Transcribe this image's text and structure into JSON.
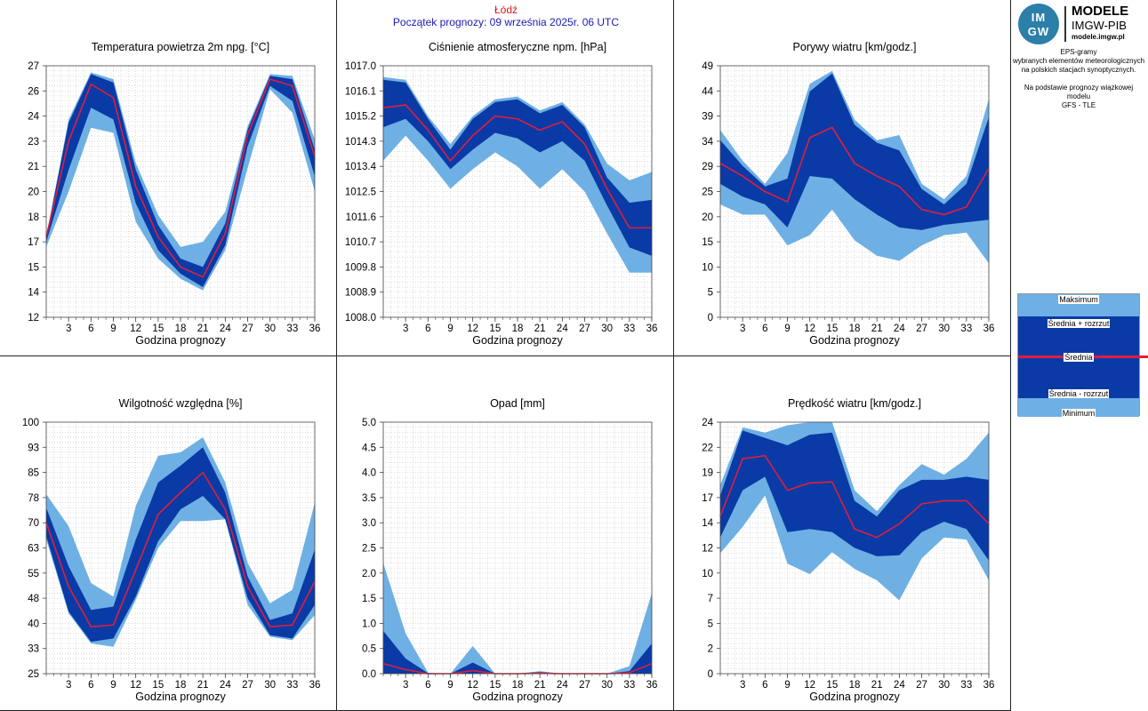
{
  "header": {
    "city": "Łódź",
    "init_line": "Początek prognozy: 09 września 2025r. 06 UTC"
  },
  "logo": {
    "mark_top": "IM",
    "mark_bottom": "GW",
    "line1": "MODELE",
    "line2": "IMGW-PIB",
    "line3": "modele.imgw.pl"
  },
  "info": {
    "line1": "EPS-gramy",
    "line2": "wybranych elementów meteorologicznych",
    "line3": "na polskich stacjach  synoptycznych.",
    "line4": "Na podstawie prognozy wiązkowej modelu",
    "line5": "GFS - TLE"
  },
  "legend": {
    "max": "Maksimum",
    "mean_plus": "Średnia + rozrzut",
    "mean": "Średnia",
    "mean_minus": "Średnia - rozrzut",
    "min": "Minimum"
  },
  "colors": {
    "outer_band": "#6eb0e4",
    "inner_band": "#0a3aa6",
    "mean_line": "#e01e3c",
    "grid": "#c8c8c8"
  },
  "chart_data": [
    {
      "type": "area",
      "title": "Temperatura powietrza 2m npg. [°C]",
      "xlabel": "Godzina prognozy",
      "x": [
        0,
        3,
        6,
        9,
        12,
        15,
        18,
        21,
        24,
        27,
        30,
        33,
        36
      ],
      "xticks": [
        3,
        6,
        9,
        12,
        15,
        18,
        21,
        24,
        27,
        30,
        33,
        36
      ],
      "ylim": [
        12,
        27
      ],
      "yticks": [
        "12",
        "14",
        "15",
        "17",
        "18",
        "20",
        "21",
        "23",
        "24",
        "26",
        "27"
      ],
      "ytick_values": [
        12,
        13.5,
        15,
        16.5,
        18,
        19.5,
        21,
        22.5,
        24,
        25.5,
        27
      ],
      "max": [
        16.8,
        23.8,
        26.6,
        26.2,
        21.2,
        18.1,
        16.2,
        16.5,
        18.3,
        23.4,
        26.5,
        26.4,
        22.6
      ],
      "plus": [
        16.8,
        23.6,
        26.5,
        26.0,
        20.8,
        17.5,
        15.5,
        15.0,
        17.6,
        23.2,
        26.4,
        26.2,
        22.0
      ],
      "mean": [
        16.8,
        22.5,
        25.9,
        25.1,
        19.8,
        16.8,
        15.0,
        14.4,
        17.0,
        22.9,
        26.2,
        25.8,
        21.6
      ],
      "minus": [
        16.5,
        20.8,
        24.5,
        23.8,
        18.8,
        16.0,
        14.6,
        13.8,
        16.3,
        22.2,
        25.8,
        24.9,
        20.4
      ],
      "min": [
        16.2,
        19.5,
        23.3,
        23.0,
        17.7,
        15.5,
        14.3,
        13.6,
        16.0,
        20.9,
        25.6,
        24.2,
        19.5
      ]
    },
    {
      "type": "area",
      "title": "Ciśnienie atmosferyczne npm. [hPa]",
      "xlabel": "Godzina prognozy",
      "x": [
        0,
        3,
        6,
        9,
        12,
        15,
        18,
        21,
        24,
        27,
        30,
        33,
        36
      ],
      "xticks": [
        3,
        6,
        9,
        12,
        15,
        18,
        21,
        24,
        27,
        30,
        33,
        36
      ],
      "ylim": [
        1008.0,
        1017.0
      ],
      "yticks": [
        "1008.0",
        "1008.9",
        "1009.8",
        "1010.7",
        "1011.6",
        "1012.5",
        "1013.4",
        "1014.3",
        "1015.2",
        "1016.1",
        "1017.0"
      ],
      "ytick_values": [
        1008.0,
        1008.9,
        1009.8,
        1010.7,
        1011.6,
        1012.5,
        1013.4,
        1014.3,
        1015.2,
        1016.1,
        1017.0
      ],
      "max": [
        1016.6,
        1016.5,
        1015.2,
        1014.2,
        1015.2,
        1015.8,
        1015.9,
        1015.4,
        1015.7,
        1014.9,
        1013.5,
        1012.9,
        1013.2
      ],
      "plus": [
        1016.5,
        1016.4,
        1015.1,
        1014.0,
        1015.1,
        1015.7,
        1015.8,
        1015.3,
        1015.6,
        1014.8,
        1013.0,
        1012.1,
        1012.2
      ],
      "mean": [
        1015.5,
        1015.6,
        1014.7,
        1013.6,
        1014.5,
        1015.2,
        1015.1,
        1014.7,
        1015.0,
        1014.2,
        1012.6,
        1011.2,
        1011.2
      ],
      "minus": [
        1014.8,
        1015.1,
        1014.3,
        1013.3,
        1014.0,
        1014.6,
        1014.4,
        1013.9,
        1014.3,
        1013.6,
        1012.0,
        1010.5,
        1010.2
      ],
      "min": [
        1013.6,
        1014.5,
        1013.6,
        1012.6,
        1013.3,
        1013.9,
        1013.4,
        1012.6,
        1013.3,
        1012.5,
        1011.0,
        1009.6,
        1009.6
      ]
    },
    {
      "type": "area",
      "title": "Porywy wiatru [km/godz.]",
      "xlabel": "Godzina prognozy",
      "x": [
        0,
        3,
        6,
        9,
        12,
        15,
        18,
        21,
        24,
        27,
        30,
        33,
        36
      ],
      "xticks": [
        3,
        6,
        9,
        12,
        15,
        18,
        21,
        24,
        27,
        30,
        33,
        36
      ],
      "ylim": [
        0,
        49
      ],
      "yticks": [
        "0",
        "5",
        "10",
        "15",
        "20",
        "25",
        "29",
        "34",
        "39",
        "44",
        "49"
      ],
      "ytick_values": [
        0,
        4.9,
        9.8,
        14.7,
        19.6,
        24.5,
        29.4,
        34.3,
        39.2,
        44.1,
        49.0
      ],
      "max": [
        36.5,
        30.5,
        26.0,
        32.0,
        45.5,
        48.0,
        38.5,
        34.5,
        35.5,
        26.0,
        23.0,
        27.5,
        42.5
      ],
      "plus": [
        34.5,
        29.5,
        25.5,
        27.0,
        44.0,
        47.5,
        37.5,
        34.0,
        32.5,
        25.0,
        22.0,
        26.0,
        39.0
      ],
      "mean": [
        30.0,
        27.5,
        24.5,
        22.5,
        35.0,
        37.0,
        30.0,
        27.5,
        25.5,
        21.0,
        20.0,
        21.5,
        29.0
      ],
      "minus": [
        26.0,
        23.5,
        22.0,
        17.5,
        27.5,
        27.0,
        23.0,
        20.0,
        17.5,
        17.0,
        18.0,
        18.5,
        19.0
      ],
      "min": [
        22.0,
        20.0,
        20.0,
        14.0,
        16.0,
        21.0,
        15.0,
        12.0,
        11.0,
        14.0,
        16.0,
        16.5,
        10.5
      ]
    },
    {
      "type": "area",
      "title": "Wilgotność względna [%]",
      "xlabel": "Godzina prognozy",
      "x": [
        0,
        3,
        6,
        9,
        12,
        15,
        18,
        21,
        24,
        27,
        30,
        33,
        36
      ],
      "xticks": [
        3,
        6,
        9,
        12,
        15,
        18,
        21,
        24,
        27,
        30,
        33,
        36
      ],
      "ylim": [
        25,
        100
      ],
      "yticks": [
        "25",
        "33",
        "40",
        "48",
        "55",
        "63",
        "70",
        "78",
        "85",
        "93",
        "100"
      ],
      "ytick_values": [
        25,
        32.5,
        40,
        47.5,
        55,
        62.5,
        70,
        77.5,
        85,
        92.5,
        100
      ],
      "max": [
        78.5,
        69.0,
        52.0,
        48.0,
        75.0,
        90.0,
        91.0,
        95.5,
        82.0,
        58.0,
        46.0,
        50.0,
        76.0
      ],
      "plus": [
        74.5,
        57.0,
        44.0,
        45.0,
        65.0,
        82.0,
        87.0,
        92.5,
        79.0,
        54.0,
        41.0,
        43.0,
        62.0
      ],
      "mean": [
        70.0,
        51.0,
        39.0,
        39.5,
        56.0,
        72.5,
        79.0,
        85.0,
        74.0,
        51.0,
        39.0,
        39.5,
        52.5
      ],
      "minus": [
        66.0,
        43.5,
        34.5,
        35.5,
        48.0,
        64.5,
        74.0,
        78.0,
        71.0,
        47.5,
        36.5,
        35.5,
        45.5
      ],
      "min": [
        65.0,
        43.0,
        34.0,
        33.0,
        47.0,
        62.5,
        70.5,
        70.5,
        71.0,
        45.5,
        36.0,
        35.0,
        42.5
      ]
    },
    {
      "type": "area",
      "title": "Opad [mm]",
      "xlabel": "Godzina prognozy",
      "x": [
        0,
        3,
        6,
        9,
        12,
        15,
        18,
        21,
        24,
        27,
        30,
        33,
        36
      ],
      "xticks": [
        3,
        6,
        9,
        12,
        15,
        18,
        21,
        24,
        27,
        30,
        33,
        36
      ],
      "ylim": [
        0,
        5
      ],
      "yticks": [
        "0.0",
        "0.5",
        "1.0",
        "1.5",
        "2.0",
        "2.5",
        "3.0",
        "3.5",
        "4.0",
        "4.5",
        "5.0"
      ],
      "ytick_values": [
        0,
        0.5,
        1.0,
        1.5,
        2.0,
        2.5,
        3.0,
        3.5,
        4.0,
        4.5,
        5.0
      ],
      "max": [
        2.2,
        0.8,
        0.02,
        0.0,
        0.55,
        0.0,
        0.0,
        0.05,
        0.0,
        0.0,
        0.0,
        0.15,
        1.6
      ],
      "plus": [
        0.85,
        0.3,
        0.01,
        0.0,
        0.22,
        0.0,
        0.0,
        0.03,
        0.0,
        0.0,
        0.0,
        0.05,
        0.6
      ],
      "mean": [
        0.2,
        0.08,
        0.0,
        0.0,
        0.06,
        0.0,
        0.0,
        0.01,
        0.0,
        0.0,
        0.0,
        0.02,
        0.2
      ],
      "minus": [
        0.0,
        0.0,
        0.0,
        0.0,
        0.0,
        0.0,
        0.0,
        0.0,
        0.0,
        0.0,
        0.0,
        0.0,
        0.0
      ],
      "min": [
        0.0,
        0.0,
        0.0,
        0.0,
        0.0,
        0.0,
        0.0,
        0.0,
        0.0,
        0.0,
        0.0,
        0.0,
        0.0
      ]
    },
    {
      "type": "area",
      "title": "Prędkość wiatru [km/godz.]",
      "xlabel": "Godzina prognozy",
      "x": [
        0,
        3,
        6,
        9,
        12,
        15,
        18,
        21,
        24,
        27,
        30,
        33,
        36
      ],
      "xticks": [
        3,
        6,
        9,
        12,
        15,
        18,
        21,
        24,
        27,
        30,
        33,
        36
      ],
      "ylim": [
        0,
        24
      ],
      "yticks": [
        "0",
        "2",
        "5",
        "7",
        "10",
        "12",
        "14",
        "17",
        "19",
        "22",
        "24"
      ],
      "ytick_values": [
        0,
        2.4,
        4.8,
        7.2,
        9.6,
        12.0,
        14.4,
        16.8,
        19.2,
        21.6,
        24.0
      ],
      "max": [
        18.0,
        23.5,
        23.0,
        23.7,
        24.0,
        24.0,
        17.5,
        15.5,
        18.0,
        20.0,
        19.0,
        20.5,
        23.0
      ],
      "plus": [
        17.0,
        23.2,
        22.5,
        21.8,
        22.8,
        23.0,
        16.5,
        15.0,
        17.5,
        18.5,
        18.5,
        18.8,
        18.5
      ],
      "mean": [
        15.0,
        20.5,
        20.8,
        17.5,
        18.2,
        18.3,
        13.8,
        13.0,
        14.3,
        16.2,
        16.5,
        16.5,
        14.3
      ],
      "minus": [
        13.0,
        17.5,
        18.8,
        13.5,
        13.8,
        13.5,
        12.0,
        11.2,
        11.3,
        13.5,
        14.5,
        13.8,
        10.8
      ],
      "min": [
        11.5,
        14.0,
        17.0,
        10.5,
        9.5,
        11.6,
        10.0,
        8.9,
        7.0,
        11.0,
        13.0,
        12.8,
        8.9
      ]
    }
  ]
}
